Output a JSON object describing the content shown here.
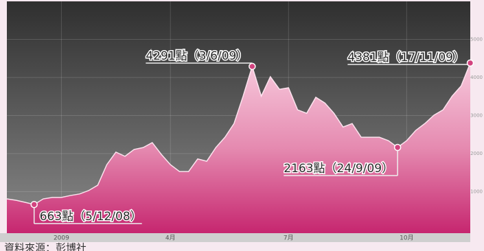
{
  "chart_data": {
    "type": "area",
    "source": "資料來源：彭博社",
    "categories": [
      null,
      null,
      null,
      null,
      null,
      null,
      "2009",
      null,
      null,
      null,
      null,
      null,
      null,
      null,
      null,
      null,
      null,
      null,
      "4月",
      null,
      null,
      null,
      null,
      null,
      null,
      null,
      null,
      null,
      null,
      null,
      null,
      "7月",
      null,
      null,
      null,
      null,
      null,
      null,
      null,
      null,
      null,
      null,
      null,
      null,
      "10月",
      null,
      null,
      null,
      null,
      null,
      null,
      null
    ],
    "values": [
      810,
      775,
      720,
      663,
      810,
      850,
      850,
      900,
      940,
      1030,
      1170,
      1710,
      2040,
      1930,
      2110,
      2160,
      2290,
      1980,
      1710,
      1530,
      1530,
      1860,
      1800,
      2160,
      2430,
      2790,
      3510,
      4291,
      3510,
      4020,
      3690,
      3730,
      3150,
      3060,
      3480,
      3330,
      3060,
      2700,
      2790,
      2430,
      2430,
      2430,
      2340,
      2163,
      2340,
      2610,
      2790,
      3010,
      3150,
      3510,
      3780,
      4381
    ],
    "color": "#d2437f",
    "ylim": [
      0,
      6000
    ],
    "yticks": [
      1000,
      2000,
      3000,
      4000,
      5000
    ],
    "grid": true,
    "annotations": [
      {
        "value": 4291,
        "label": "4291點（3/6/09）"
      },
      {
        "value": 4381,
        "label": "4381點（17/11/09）"
      },
      {
        "value": 2163,
        "label": "2163點（24/9/09）"
      },
      {
        "value": 663,
        "label": "663點（5/12/08）"
      }
    ]
  }
}
